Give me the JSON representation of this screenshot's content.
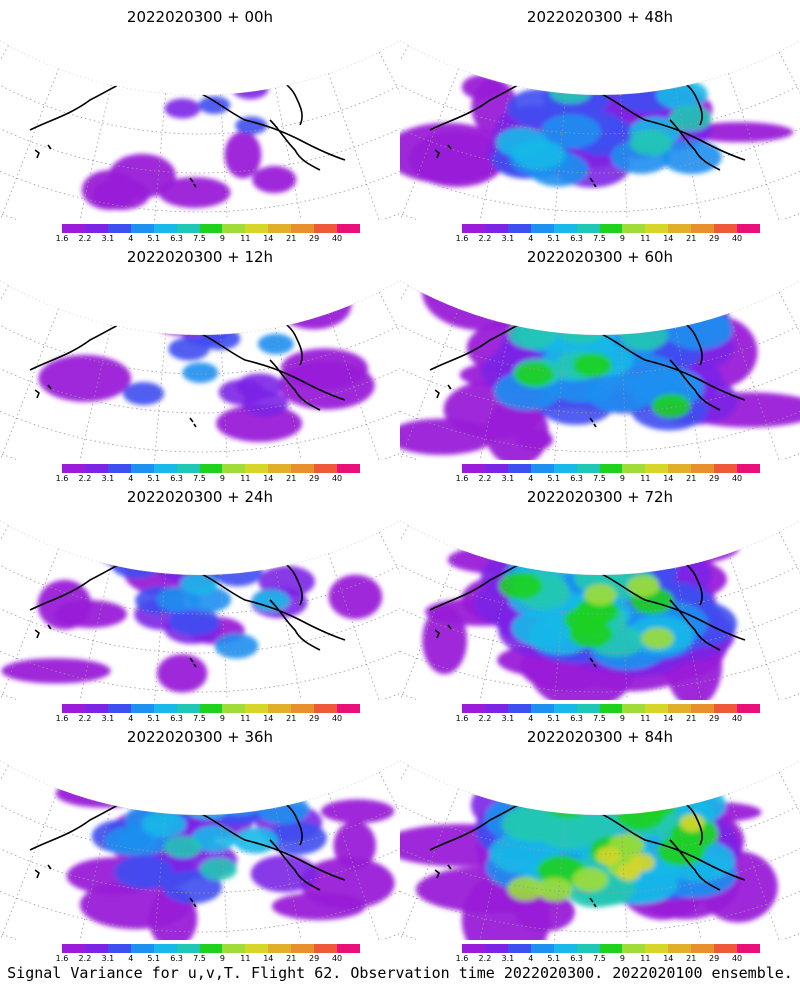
{
  "panels": [
    {
      "title": "2022020300  + 00h",
      "lead_hours": 0
    },
    {
      "title": "2022020300  + 48h",
      "lead_hours": 48
    },
    {
      "title": "2022020300  + 12h",
      "lead_hours": 12
    },
    {
      "title": "2022020300  + 60h",
      "lead_hours": 60
    },
    {
      "title": "2022020300  + 24h",
      "lead_hours": 24
    },
    {
      "title": "2022020300  + 72h",
      "lead_hours": 72
    },
    {
      "title": "2022020300  + 36h",
      "lead_hours": 36
    },
    {
      "title": "2022020300  + 84h",
      "lead_hours": 84
    }
  ],
  "colorbar": {
    "colors": [
      "#9a1bd8",
      "#7b24e6",
      "#3e4ef0",
      "#1f8ff0",
      "#18b8e8",
      "#22c6b4",
      "#1fd01f",
      "#9fdc3a",
      "#d6d62a",
      "#e0b02a",
      "#e8902a",
      "#ec5a3a",
      "#e8107a"
    ],
    "labels": [
      "1.6",
      "2.2",
      "3.1",
      "4",
      "5.1",
      "6.3",
      "7.5",
      "9",
      "11",
      "14",
      "21",
      "29",
      "40"
    ]
  },
  "caption": "Signal Variance for u,v,T. Flight 62. Observation time 2022020300. 2022020100 ensemble."
}
